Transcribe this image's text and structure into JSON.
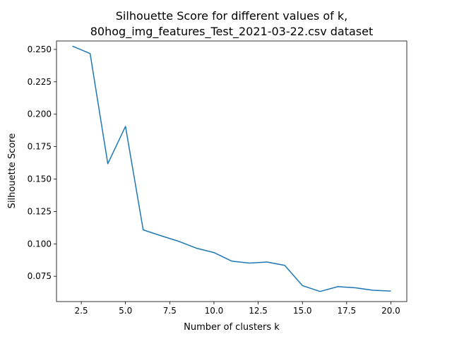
{
  "chart_data": {
    "type": "line",
    "title_line1": "Silhouette Score for different values of k,",
    "title_line2": "80hog_img_features_Test_2021-03-22.csv dataset",
    "xlabel": "Number of clusters k",
    "ylabel": "Silhouette Score",
    "xlim": [
      1.1,
      20.9
    ],
    "ylim": [
      0.0555,
      0.2565
    ],
    "xticks": [
      2.5,
      5.0,
      7.5,
      10.0,
      12.5,
      15.0,
      17.5,
      20.0
    ],
    "xtick_labels": [
      "2.5",
      "5.0",
      "7.5",
      "10.0",
      "12.5",
      "15.0",
      "17.5",
      "20.0"
    ],
    "yticks": [
      0.075,
      0.1,
      0.125,
      0.15,
      0.175,
      0.2,
      0.225,
      0.25
    ],
    "ytick_labels": [
      "0.075",
      "0.100",
      "0.125",
      "0.150",
      "0.175",
      "0.200",
      "0.225",
      "0.250"
    ],
    "grid": false,
    "series": [
      {
        "color": "#1f77b4",
        "x": [
          2,
          3,
          4,
          5,
          6,
          7,
          8,
          9,
          10,
          11,
          12,
          13,
          14,
          15,
          16,
          17,
          18,
          19,
          20
        ],
        "y": [
          0.2525,
          0.2468,
          0.1618,
          0.1906,
          0.1108,
          0.1063,
          0.102,
          0.0967,
          0.0933,
          0.0867,
          0.0852,
          0.086,
          0.0834,
          0.0678,
          0.0633,
          0.067,
          0.0661,
          0.0642,
          0.0636
        ]
      }
    ]
  }
}
